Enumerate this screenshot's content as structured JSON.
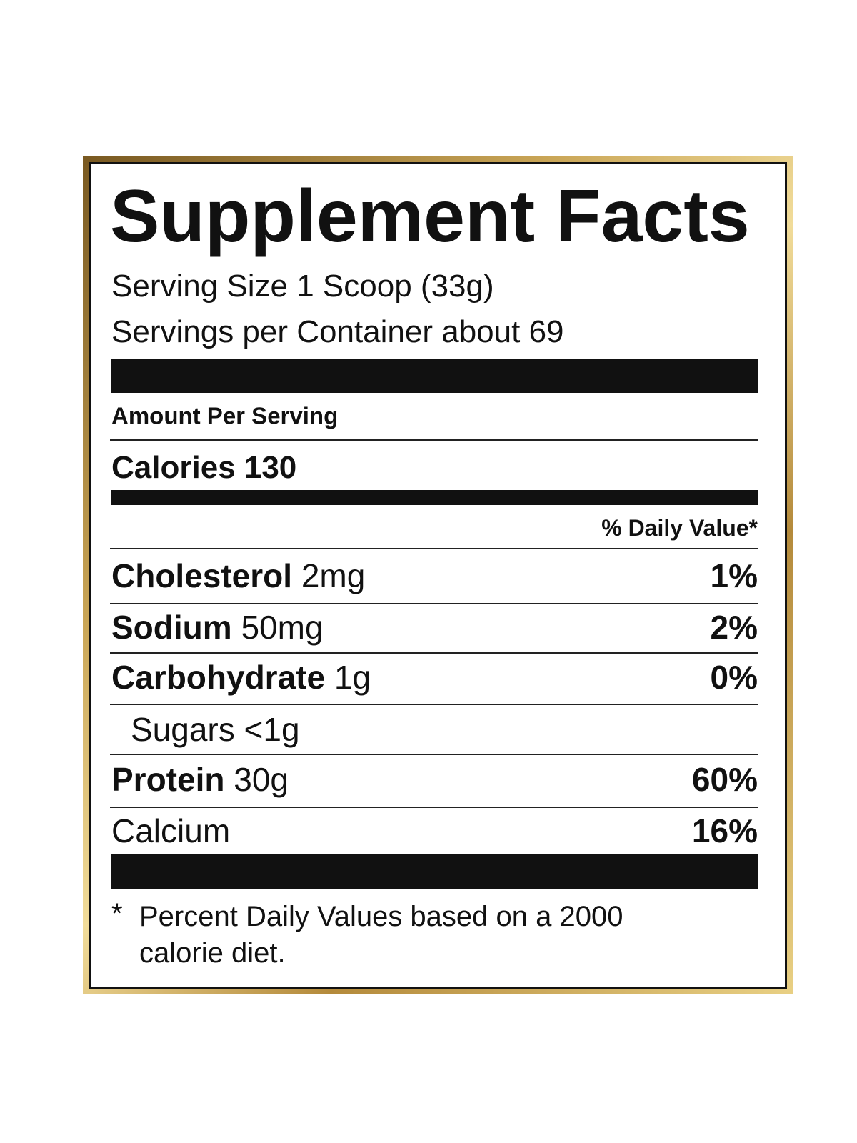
{
  "title": "Supplement Facts",
  "serving_size": "Serving Size 1 Scoop (33g)",
  "servings_per_container": "Servings per Container about 69",
  "amount_per_serving": "Amount Per Serving",
  "calories": "Calories 130",
  "daily_value_header": "% Daily Value*",
  "nutrients": [
    {
      "name": "Cholesterol",
      "amount": "2mg",
      "dv": "1%"
    },
    {
      "name": "Sodium",
      "amount": "50mg",
      "dv": "2%"
    },
    {
      "name": "Carbohydrate",
      "amount": "1g",
      "dv": "0%"
    },
    {
      "name": "Sugars",
      "amount": "<1g"
    },
    {
      "name": "Protein",
      "amount": "30g",
      "dv": "60%"
    },
    {
      "name": "Calcium",
      "dv": "16%"
    }
  ],
  "footnote": {
    "mark": "*",
    "text": "Percent Daily Values based on a 2000 calorie diet."
  }
}
